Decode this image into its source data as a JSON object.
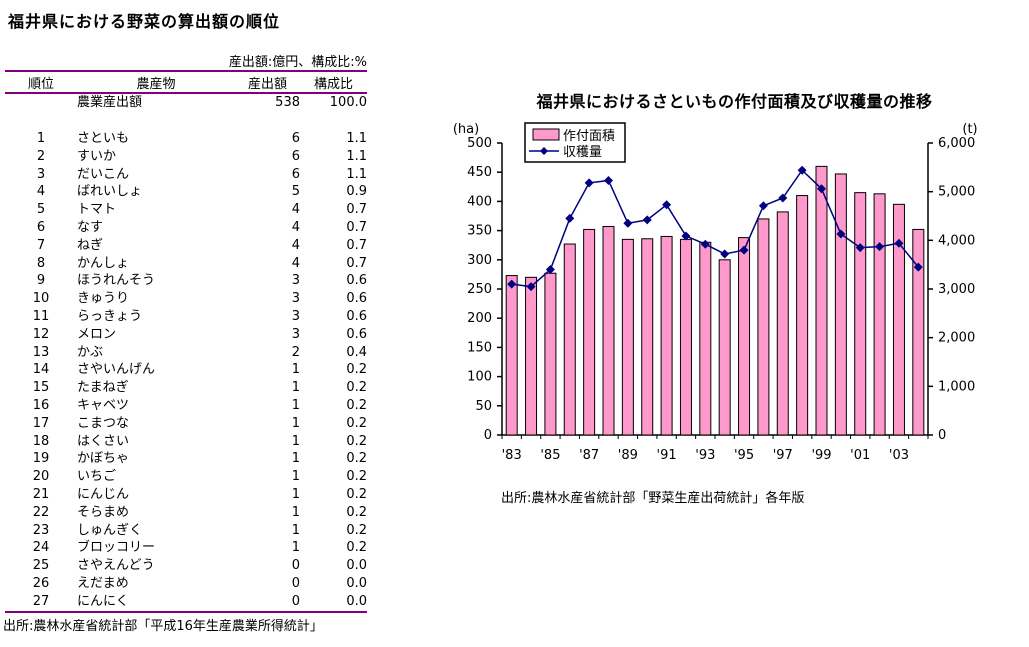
{
  "table_section": {
    "title": "福井県における野菜の算出額の順位",
    "unit_note": "産出額:億円、構成比:%",
    "columns": [
      "順位",
      "農産物",
      "産出額",
      "構成比"
    ],
    "total_row": {
      "rank": "",
      "product": "農業産出額",
      "value": "538",
      "ratio": "100.0"
    },
    "rows": [
      {
        "rank": "1",
        "product": "さといも",
        "value": "6",
        "ratio": "1.1"
      },
      {
        "rank": "2",
        "product": "すいか",
        "value": "6",
        "ratio": "1.1"
      },
      {
        "rank": "3",
        "product": "だいこん",
        "value": "6",
        "ratio": "1.1"
      },
      {
        "rank": "4",
        "product": "ばれいしょ",
        "value": "5",
        "ratio": "0.9"
      },
      {
        "rank": "5",
        "product": "トマト",
        "value": "4",
        "ratio": "0.7"
      },
      {
        "rank": "6",
        "product": "なす",
        "value": "4",
        "ratio": "0.7"
      },
      {
        "rank": "7",
        "product": "ねぎ",
        "value": "4",
        "ratio": "0.7"
      },
      {
        "rank": "8",
        "product": "かんしょ",
        "value": "4",
        "ratio": "0.7"
      },
      {
        "rank": "9",
        "product": "ほうれんそう",
        "value": "3",
        "ratio": "0.6"
      },
      {
        "rank": "10",
        "product": "きゅうり",
        "value": "3",
        "ratio": "0.6"
      },
      {
        "rank": "11",
        "product": "らっきょう",
        "value": "3",
        "ratio": "0.6"
      },
      {
        "rank": "12",
        "product": "メロン",
        "value": "3",
        "ratio": "0.6"
      },
      {
        "rank": "13",
        "product": "かぶ",
        "value": "2",
        "ratio": "0.4"
      },
      {
        "rank": "14",
        "product": "さやいんげん",
        "value": "1",
        "ratio": "0.2"
      },
      {
        "rank": "15",
        "product": "たまねぎ",
        "value": "1",
        "ratio": "0.2"
      },
      {
        "rank": "16",
        "product": "キャベツ",
        "value": "1",
        "ratio": "0.2"
      },
      {
        "rank": "17",
        "product": "こまつな",
        "value": "1",
        "ratio": "0.2"
      },
      {
        "rank": "18",
        "product": "はくさい",
        "value": "1",
        "ratio": "0.2"
      },
      {
        "rank": "19",
        "product": "かぼちゃ",
        "value": "1",
        "ratio": "0.2"
      },
      {
        "rank": "20",
        "product": "いちご",
        "value": "1",
        "ratio": "0.2"
      },
      {
        "rank": "21",
        "product": "にんじん",
        "value": "1",
        "ratio": "0.2"
      },
      {
        "rank": "22",
        "product": "そらまめ",
        "value": "1",
        "ratio": "0.2"
      },
      {
        "rank": "23",
        "product": "しゅんぎく",
        "value": "1",
        "ratio": "0.2"
      },
      {
        "rank": "24",
        "product": "ブロッコリー",
        "value": "1",
        "ratio": "0.2"
      },
      {
        "rank": "25",
        "product": "さやえんどう",
        "value": "0",
        "ratio": "0.0"
      },
      {
        "rank": "26",
        "product": "えだまめ",
        "value": "0",
        "ratio": "0.0"
      },
      {
        "rank": "27",
        "product": "にんにく",
        "value": "0",
        "ratio": "0.0"
      }
    ],
    "source": "出所:農林水産省統計部「平成16年生産農業所得統計」",
    "rule_color": "#800080"
  },
  "chart_section": {
    "title": "福井県におけるさといもの作付面積及び収穫量の推移",
    "source": "出所:農林水産省統計部「野菜生産出荷統計」各年版"
  },
  "chart_data": {
    "type": "bar",
    "subtype": "bar-line-combo",
    "title": "福井県におけるさといもの作付面積及び収穫量の推移",
    "x": [
      "'83",
      "'84",
      "'85",
      "'86",
      "'87",
      "'88",
      "'89",
      "'90",
      "'91",
      "'92",
      "'93",
      "'94",
      "'95",
      "'96",
      "'97",
      "'98",
      "'99",
      "'00",
      "'01",
      "'02",
      "'03",
      "'04"
    ],
    "x_ticks_shown": [
      "'83",
      "'85",
      "'87",
      "'89",
      "'91",
      "'93",
      "'95",
      "'97",
      "'99",
      "'01",
      "'03"
    ],
    "series": [
      {
        "name": "作付面積",
        "type": "bar",
        "axis": "left",
        "unit": "ha",
        "values": [
          273,
          270,
          277,
          327,
          352,
          357,
          335,
          336,
          340,
          335,
          330,
          300,
          338,
          370,
          382,
          410,
          460,
          447,
          415,
          413,
          395,
          352
        ]
      },
      {
        "name": "収穫量",
        "type": "line",
        "axis": "right",
        "unit": "t",
        "values": [
          3100,
          3050,
          3400,
          4450,
          5180,
          5230,
          4350,
          4420,
          4730,
          4090,
          3920,
          3720,
          3800,
          4710,
          4870,
          5440,
          5060,
          4130,
          3850,
          3870,
          3940,
          3450
        ]
      }
    ],
    "left_axis": {
      "unit_label": "(ha)",
      "min": 0,
      "max": 500,
      "tick_step": 50,
      "tick_labels": [
        "0",
        "50",
        "100",
        "150",
        "200",
        "250",
        "300",
        "350",
        "400",
        "450",
        "500"
      ]
    },
    "right_axis": {
      "unit_label": "(t)",
      "min": 0,
      "max": 6000,
      "tick_step": 1000,
      "tick_labels": [
        "0",
        "1,000",
        "2,000",
        "3,000",
        "4,000",
        "5,000",
        "6,000"
      ]
    },
    "legend": {
      "position": "top-left-inside",
      "entries": [
        "作付面積",
        "収穫量"
      ]
    },
    "grid": false,
    "bar_color": "#FF99CC",
    "bar_border_color": "#000000",
    "line_color": "#000080",
    "axis_color": "#000000"
  }
}
